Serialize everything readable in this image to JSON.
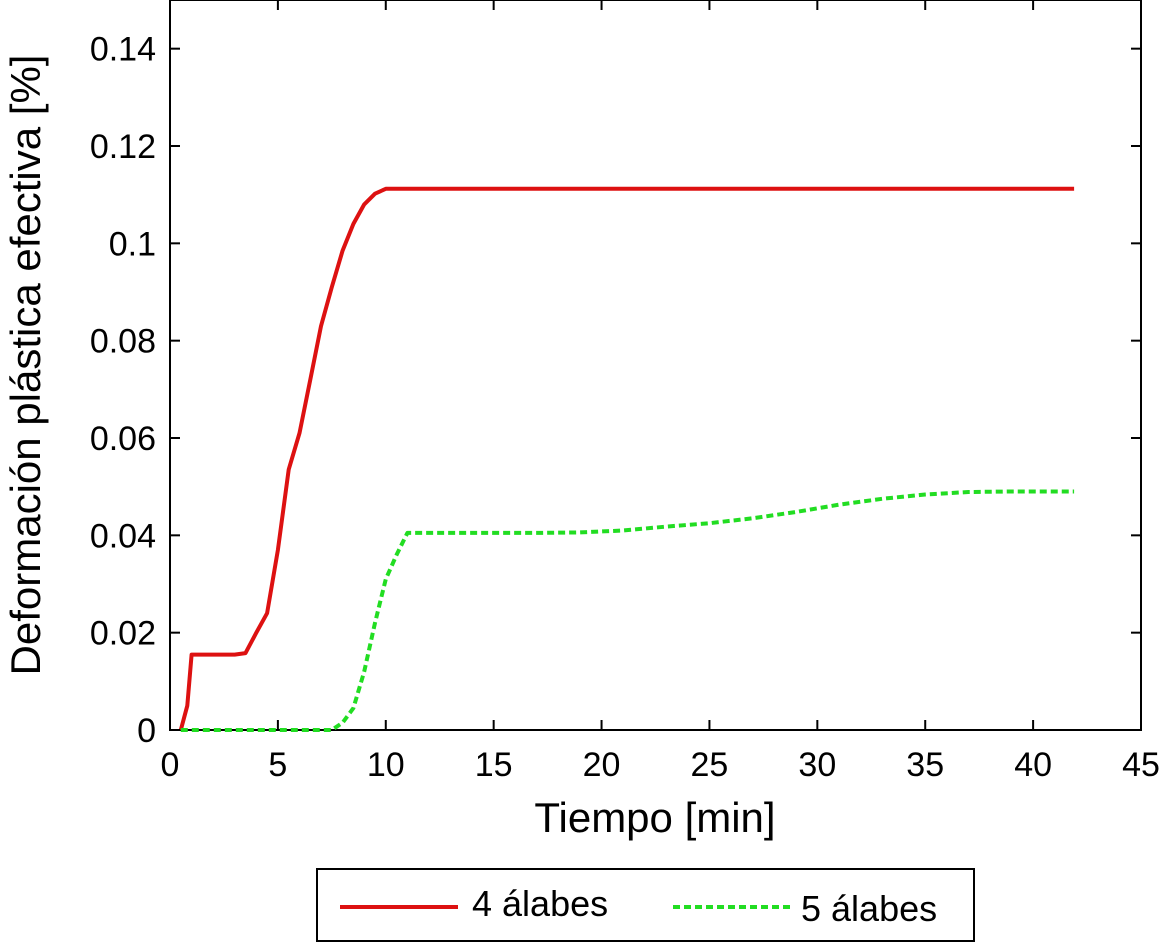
{
  "chart_data": {
    "type": "line",
    "title": "",
    "xlabel": "Tiempo [min]",
    "ylabel": "Deformación plástica efectiva [%]",
    "xlim": [
      0,
      45
    ],
    "ylim": [
      0,
      0.15
    ],
    "xticks": [
      0,
      5,
      10,
      15,
      20,
      25,
      30,
      35,
      40,
      45
    ],
    "yticks": [
      0,
      0.02,
      0.04,
      0.06,
      0.08,
      0.1,
      0.12,
      0.14
    ],
    "xtick_labels": [
      "0",
      "5",
      "10",
      "15",
      "20",
      "25",
      "30",
      "35",
      "40",
      "45"
    ],
    "ytick_labels": [
      "0",
      "0.02",
      "0.04",
      "0.06",
      "0.08",
      "0.1",
      "0.12",
      "0.14"
    ],
    "grid": false,
    "legend_position": "bottom-outside",
    "series": [
      {
        "name": "4 álabes",
        "color": "#dd1111",
        "dash": "solid",
        "x": [
          0.5,
          0.8,
          1.0,
          2.0,
          3.0,
          3.5,
          4.0,
          4.5,
          5.0,
          5.5,
          6.0,
          6.5,
          7.0,
          7.5,
          8.0,
          8.5,
          9.0,
          9.5,
          10.0,
          15,
          20,
          25,
          30,
          35,
          40,
          41.9
        ],
        "y": [
          0.0,
          0.005,
          0.0155,
          0.0155,
          0.0155,
          0.0158,
          0.02,
          0.024,
          0.037,
          0.0535,
          0.061,
          0.072,
          0.083,
          0.091,
          0.0985,
          0.104,
          0.108,
          0.1102,
          0.1112,
          0.1112,
          0.1112,
          0.1112,
          0.1112,
          0.1112,
          0.1112,
          0.1112
        ]
      },
      {
        "name": "5 álabes",
        "color": "#22dd22",
        "dash": "dashed",
        "x": [
          0.5,
          2,
          4,
          6,
          7.0,
          7.5,
          8.0,
          8.5,
          9.0,
          9.5,
          10.0,
          10.5,
          11.0,
          13,
          15,
          17,
          19,
          21,
          23,
          25,
          27,
          29,
          31,
          33,
          35,
          37,
          39,
          41.9
        ],
        "y": [
          0.0,
          0.0,
          0.0,
          0.0,
          0.0,
          0.0,
          0.0015,
          0.0045,
          0.012,
          0.022,
          0.031,
          0.036,
          0.0405,
          0.0405,
          0.0405,
          0.0405,
          0.0406,
          0.041,
          0.0418,
          0.0425,
          0.0435,
          0.0448,
          0.0463,
          0.0475,
          0.0484,
          0.0489,
          0.049,
          0.049
        ]
      }
    ]
  }
}
